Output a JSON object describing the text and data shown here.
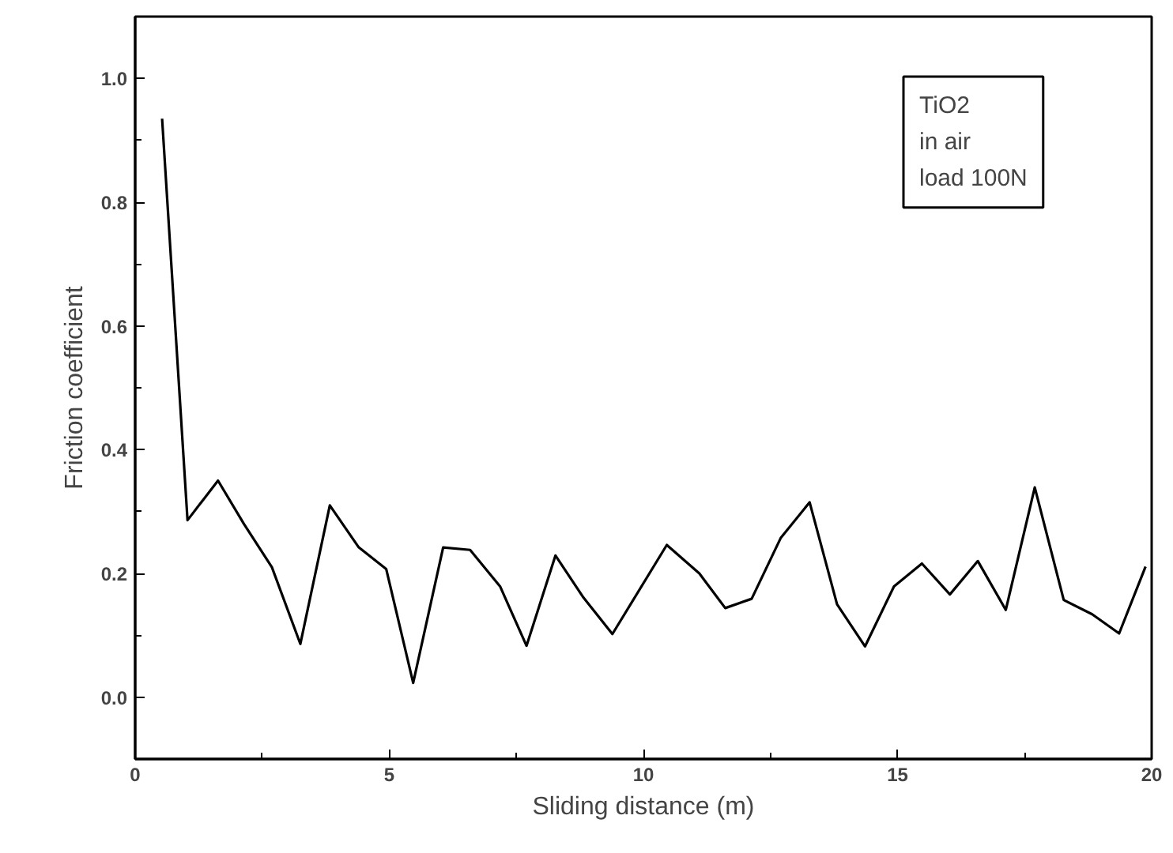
{
  "chart_data": {
    "type": "line",
    "xlabel": "Sliding distance (m)",
    "ylabel": "Friction coefficient",
    "annotations": [
      "TiO2\nin air\nload 100N"
    ],
    "x": [
      0.53,
      1.03,
      1.63,
      2.14,
      2.69,
      3.25,
      3.83,
      4.4,
      4.94,
      5.47,
      6.06,
      6.59,
      7.18,
      7.7,
      8.27,
      8.82,
      9.39,
      10.46,
      11.1,
      11.61,
      12.13,
      12.7,
      13.27,
      13.81,
      14.36,
      14.93,
      15.48,
      16.03,
      16.58,
      17.13,
      17.7,
      18.27,
      18.83,
      19.36,
      19.88
    ],
    "series": [
      {
        "color": "#000000",
        "values": [
          0.935,
          0.286,
          0.35,
          0.28,
          0.21,
          0.086,
          0.31,
          0.242,
          0.207,
          0.023,
          0.242,
          0.238,
          0.179,
          0.083,
          0.229,
          0.161,
          0.102,
          0.246,
          0.2,
          0.144,
          0.159,
          0.257,
          0.315,
          0.15,
          0.082,
          0.179,
          0.216,
          0.166,
          0.22,
          0.141,
          0.339,
          0.157,
          0.134,
          0.103,
          0.211
        ]
      }
    ],
    "xlim": [
      0,
      20
    ],
    "ylim": [
      -0.1,
      1.1
    ],
    "xticks": [
      0,
      {
        "value": 2.5,
        "label": null
      },
      5,
      {
        "value": 7.5,
        "label": null
      },
      10,
      {
        "value": 12.5,
        "label": null
      },
      15,
      {
        "value": 17.5,
        "label": null
      },
      20
    ],
    "yticks": [
      {
        "value": 0,
        "label": "0.0"
      },
      {
        "value": 0.1,
        "label": null
      },
      {
        "value": 0.2,
        "label": "0.2"
      },
      {
        "value": 0.3,
        "label": null
      },
      {
        "value": 0.4,
        "label": "0.4"
      },
      {
        "value": 0.5,
        "label": null
      },
      {
        "value": 0.6,
        "label": "0.6"
      },
      {
        "value": 0.7,
        "label": null
      },
      {
        "value": 0.8,
        "label": "0.8"
      },
      {
        "value": 0.9,
        "label": null
      },
      {
        "value": 1.0,
        "label": "1.0"
      }
    ],
    "grid": false,
    "marker": "none",
    "line_style": "solid"
  }
}
